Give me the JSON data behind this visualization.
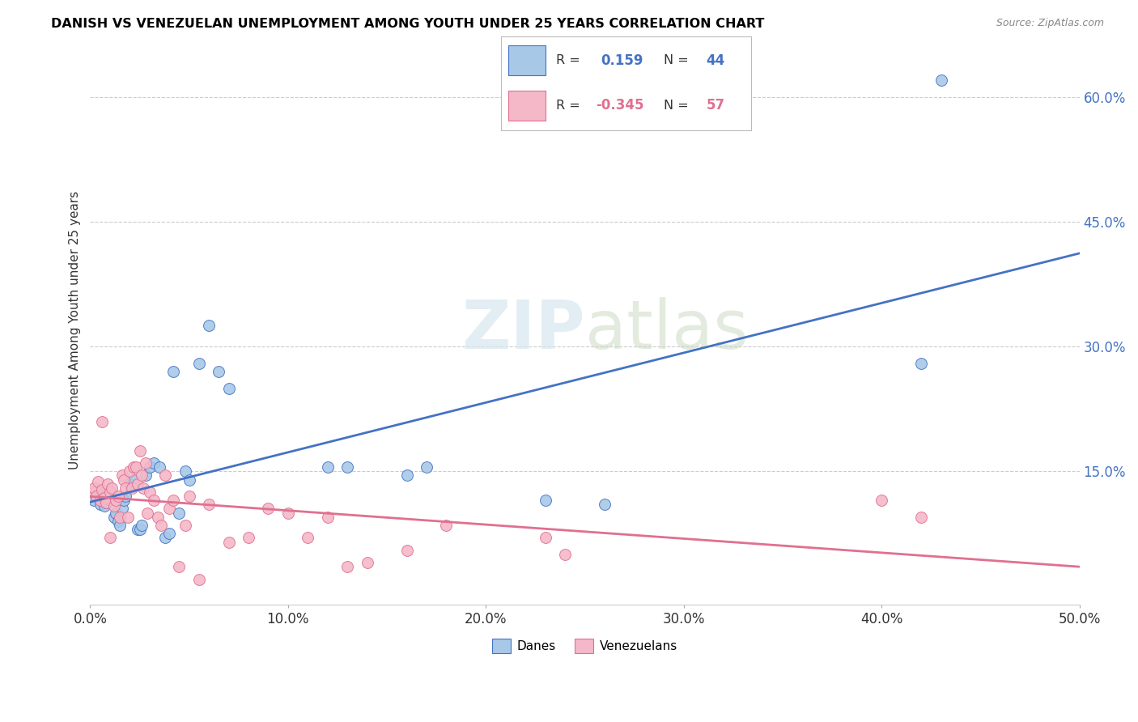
{
  "title": "DANISH VS VENEZUELAN UNEMPLOYMENT AMONG YOUTH UNDER 25 YEARS CORRELATION CHART",
  "source": "Source: ZipAtlas.com",
  "ylabel": "Unemployment Among Youth under 25 years",
  "xlim": [
    0.0,
    50.0
  ],
  "ylim": [
    -1.0,
    65.0
  ],
  "xticks": [
    0.0,
    10.0,
    20.0,
    30.0,
    40.0,
    50.0
  ],
  "yticks": [
    15.0,
    30.0,
    45.0,
    60.0
  ],
  "ytick_labels": [
    "15.0%",
    "30.0%",
    "45.0%",
    "60.0%"
  ],
  "xtick_labels": [
    "0.0%",
    "10.0%",
    "20.0%",
    "30.0%",
    "40.0%",
    "50.0%"
  ],
  "danes_color": "#a8c8e8",
  "venezuelans_color": "#f4b8c8",
  "danes_line_color": "#4472c4",
  "venezuelans_line_color": "#e07090",
  "danes_R": 0.159,
  "danes_N": 44,
  "venezuelans_R": -0.345,
  "venezuelans_N": 57,
  "danes_x": [
    0.2,
    0.3,
    0.5,
    0.5,
    0.6,
    0.7,
    0.8,
    0.8,
    0.9,
    1.0,
    1.2,
    1.3,
    1.4,
    1.5,
    1.6,
    1.7,
    1.8,
    2.0,
    2.2,
    2.4,
    2.5,
    2.6,
    2.8,
    3.0,
    3.2,
    3.5,
    3.8,
    4.0,
    4.2,
    4.5,
    4.8,
    5.0,
    5.5,
    6.0,
    6.5,
    7.0,
    12.0,
    13.0,
    16.0,
    17.0,
    23.0,
    26.0,
    42.0,
    43.0
  ],
  "danes_y": [
    11.5,
    12.0,
    11.0,
    12.5,
    11.8,
    10.8,
    11.2,
    12.2,
    11.8,
    11.5,
    9.5,
    10.0,
    9.0,
    8.5,
    10.5,
    11.5,
    12.0,
    13.5,
    14.0,
    8.0,
    8.0,
    8.5,
    14.5,
    15.5,
    16.0,
    15.5,
    7.0,
    7.5,
    27.0,
    10.0,
    15.0,
    14.0,
    28.0,
    32.5,
    27.0,
    25.0,
    15.5,
    15.5,
    14.5,
    15.5,
    11.5,
    11.0,
    28.0,
    62.0
  ],
  "venezuelans_x": [
    0.1,
    0.2,
    0.3,
    0.4,
    0.5,
    0.6,
    0.6,
    0.7,
    0.8,
    0.9,
    1.0,
    1.0,
    1.1,
    1.2,
    1.3,
    1.4,
    1.5,
    1.6,
    1.7,
    1.8,
    1.9,
    2.0,
    2.1,
    2.2,
    2.3,
    2.4,
    2.5,
    2.6,
    2.7,
    2.8,
    2.9,
    3.0,
    3.2,
    3.4,
    3.6,
    3.8,
    4.0,
    4.2,
    4.5,
    4.8,
    5.0,
    5.5,
    6.0,
    7.0,
    8.0,
    9.0,
    10.0,
    11.0,
    12.0,
    13.0,
    14.0,
    16.0,
    18.0,
    23.0,
    24.0,
    40.0,
    42.0
  ],
  "venezuelans_y": [
    12.5,
    13.0,
    12.0,
    13.8,
    11.5,
    12.8,
    21.0,
    11.8,
    11.2,
    13.5,
    12.5,
    7.0,
    13.0,
    10.8,
    11.5,
    12.0,
    9.5,
    14.5,
    14.0,
    13.0,
    9.5,
    15.0,
    13.0,
    15.5,
    15.5,
    13.5,
    17.5,
    14.5,
    13.0,
    16.0,
    10.0,
    12.5,
    11.5,
    9.5,
    8.5,
    14.5,
    10.5,
    11.5,
    3.5,
    8.5,
    12.0,
    2.0,
    11.0,
    6.5,
    7.0,
    10.5,
    10.0,
    7.0,
    9.5,
    3.5,
    4.0,
    5.5,
    8.5,
    7.0,
    5.0,
    11.5,
    9.5
  ]
}
